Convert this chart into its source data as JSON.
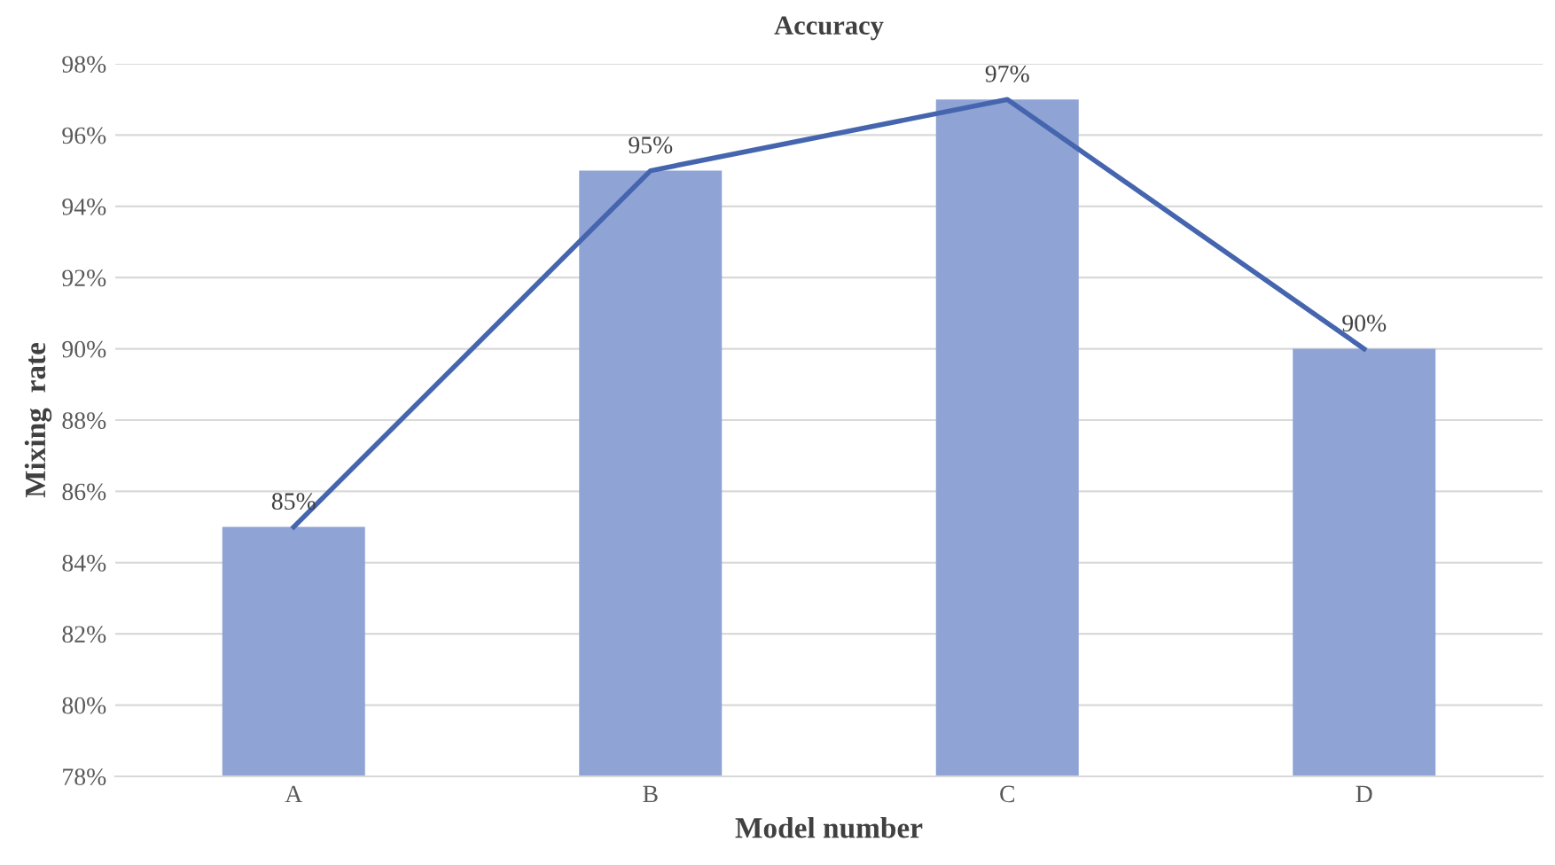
{
  "chart_data": {
    "type": "bar",
    "title": "Accuracy",
    "xlabel": "Model number",
    "ylabel": "Mixing  rate",
    "categories": [
      "A",
      "B",
      "C",
      "D"
    ],
    "series": [
      {
        "color": "#8fa3d5",
        "values": [
          85,
          95,
          97,
          90
        ]
      },
      {
        "type": "line",
        "color": "#4565ae",
        "values": [
          85,
          95,
          97,
          90
        ],
        "value_labels": [
          "85%",
          "95%",
          "97%",
          "90%"
        ]
      }
    ],
    "ylim": [
      78,
      98
    ],
    "yticks": [
      {
        "value": 78,
        "label": "78%"
      },
      {
        "value": 80,
        "label": "80%"
      },
      {
        "value": 82,
        "label": "82%"
      },
      {
        "value": 84,
        "label": "84%"
      },
      {
        "value": 86,
        "label": "86%"
      },
      {
        "value": 88,
        "label": "88%"
      },
      {
        "value": 90,
        "label": "90%"
      },
      {
        "value": 92,
        "label": "92%"
      },
      {
        "value": 94,
        "label": "94%"
      },
      {
        "value": 96,
        "label": "96%"
      },
      {
        "value": 98,
        "label": "98%"
      }
    ],
    "grid": "y",
    "marker": "none",
    "line_style": "solid"
  }
}
